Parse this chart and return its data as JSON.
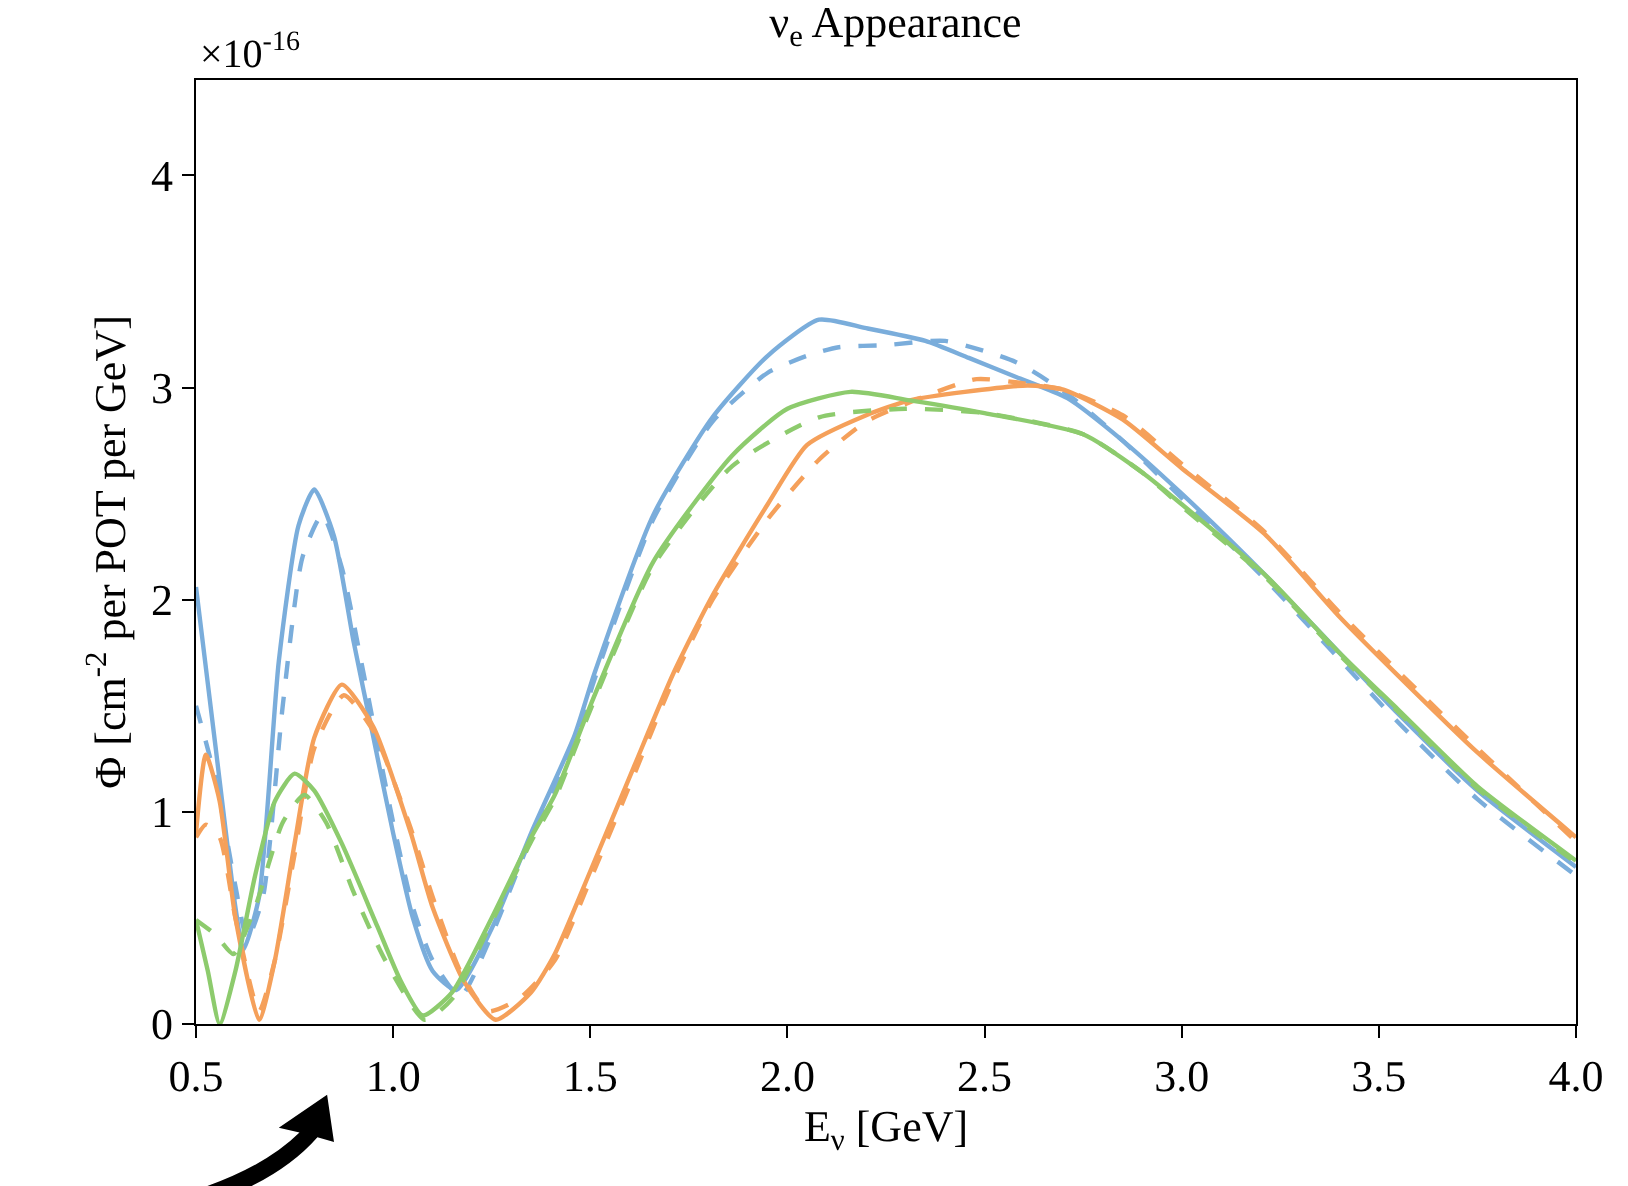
{
  "chart_data": {
    "type": "line",
    "title": "ν$_{e}$ Appearance",
    "xlabel": "E$_{ν}$ [GeV]",
    "ylabel": "Φ [cm$^{-2}$ per POT per GeV]",
    "annotations": [
      "×10$^{-16}$"
    ],
    "xlim": [
      0.5,
      4.0
    ],
    "ylim": [
      0,
      4.45
    ],
    "xticks": [
      {
        "value": 0.5,
        "label": "0.5"
      },
      {
        "value": 1.0,
        "label": "1.0"
      },
      {
        "value": 1.5,
        "label": "1.5"
      },
      {
        "value": 2.0,
        "label": "2.0"
      },
      {
        "value": 2.5,
        "label": "2.5"
      },
      {
        "value": 3.0,
        "label": "3.0"
      },
      {
        "value": 3.5,
        "label": "3.5"
      },
      {
        "value": 4.0,
        "label": "4.0"
      }
    ],
    "yticks": [
      0,
      1,
      2,
      3,
      4
    ],
    "marker": "none",
    "series": [
      {
        "color": "#7aaddb",
        "line_style": "solid",
        "x": [
          0.5,
          0.55,
          0.6,
          0.62,
          0.66,
          0.71,
          0.76,
          0.8,
          0.85,
          0.9,
          0.95,
          1.0,
          1.05,
          1.1,
          1.16,
          1.25,
          1.35,
          1.46,
          1.51,
          1.66,
          1.81,
          1.95,
          2.08,
          2.2,
          2.35,
          2.46,
          2.58,
          2.71,
          2.85,
          3.0,
          3.21,
          3.4,
          3.55,
          3.75,
          4.0
        ],
        "values": [
          2.06,
          1.3,
          0.55,
          0.35,
          0.6,
          1.71,
          2.35,
          2.52,
          2.3,
          1.8,
          1.35,
          0.9,
          0.5,
          0.25,
          0.16,
          0.45,
          0.9,
          1.36,
          1.65,
          2.4,
          2.86,
          3.15,
          3.32,
          3.28,
          3.22,
          3.14,
          3.05,
          2.95,
          2.75,
          2.5,
          2.12,
          1.75,
          1.46,
          1.1,
          0.74
        ]
      },
      {
        "color": "#7aaddb",
        "line_style": "dashed",
        "x": [
          0.5,
          0.55,
          0.6,
          0.63,
          0.67,
          0.72,
          0.77,
          0.82,
          0.87,
          0.92,
          1.0,
          1.05,
          1.1,
          1.17,
          1.25,
          1.35,
          1.46,
          1.51,
          1.66,
          1.81,
          1.95,
          2.05,
          2.13,
          2.25,
          2.4,
          2.58,
          2.71,
          2.85,
          3.0,
          3.21,
          3.4,
          3.55,
          3.75,
          4.0
        ],
        "values": [
          1.5,
          1.15,
          0.65,
          0.4,
          0.6,
          1.5,
          2.2,
          2.4,
          2.15,
          1.7,
          0.95,
          0.55,
          0.3,
          0.13,
          0.42,
          0.88,
          1.33,
          1.62,
          2.38,
          2.84,
          3.07,
          3.15,
          3.19,
          3.2,
          3.22,
          3.12,
          2.97,
          2.75,
          2.48,
          2.1,
          1.72,
          1.42,
          1.06,
          0.7
        ]
      },
      {
        "color": "#f5a05a",
        "line_style": "solid",
        "x": [
          0.5,
          0.525,
          0.56,
          0.6,
          0.66,
          0.7,
          0.75,
          0.8,
          0.87,
          0.95,
          1.045,
          1.1,
          1.18,
          1.26,
          1.35,
          1.41,
          1.5,
          1.61,
          1.71,
          1.81,
          1.95,
          2.05,
          2.2,
          2.31,
          2.45,
          2.61,
          2.7,
          2.85,
          3.0,
          3.21,
          3.4,
          3.55,
          3.75,
          4.0
        ],
        "values": [
          0.9,
          1.27,
          1.05,
          0.5,
          0.02,
          0.3,
          0.85,
          1.35,
          1.6,
          1.4,
          0.9,
          0.55,
          0.2,
          0.02,
          0.15,
          0.33,
          0.72,
          1.21,
          1.65,
          2.02,
          2.45,
          2.73,
          2.87,
          2.94,
          2.98,
          3.01,
          2.99,
          2.85,
          2.62,
          2.31,
          1.92,
          1.64,
          1.28,
          0.88
        ]
      },
      {
        "color": "#f5a05a",
        "line_style": "dashed",
        "x": [
          0.5,
          0.525,
          0.56,
          0.6,
          0.66,
          0.7,
          0.75,
          0.8,
          0.875,
          0.95,
          1.045,
          1.1,
          1.17,
          1.24,
          1.32,
          1.41,
          1.5,
          1.61,
          1.71,
          1.81,
          1.95,
          2.08,
          2.2,
          2.35,
          2.48,
          2.6,
          2.7,
          2.85,
          3.0,
          3.21,
          3.4,
          3.55,
          3.75,
          4.0
        ],
        "values": [
          0.88,
          0.94,
          0.88,
          0.5,
          0.06,
          0.3,
          0.8,
          1.3,
          1.55,
          1.38,
          0.92,
          0.6,
          0.25,
          0.06,
          0.12,
          0.3,
          0.68,
          1.17,
          1.62,
          2.0,
          2.38,
          2.66,
          2.84,
          2.96,
          3.04,
          3.02,
          2.99,
          2.87,
          2.64,
          2.32,
          1.94,
          1.66,
          1.3,
          0.86
        ]
      },
      {
        "color": "#8dcb6d",
        "line_style": "solid",
        "x": [
          0.5,
          0.53,
          0.56,
          0.6,
          0.65,
          0.7,
          0.75,
          0.8,
          0.87,
          0.96,
          1.02,
          1.075,
          1.15,
          1.25,
          1.35,
          1.41,
          1.5,
          1.66,
          1.86,
          2.0,
          2.16,
          2.31,
          2.5,
          2.75,
          2.9,
          3.0,
          3.21,
          3.4,
          3.55,
          3.75,
          4.0
        ],
        "values": [
          0.49,
          0.25,
          0.0,
          0.25,
          0.7,
          1.05,
          1.18,
          1.1,
          0.85,
          0.46,
          0.2,
          0.04,
          0.15,
          0.5,
          0.88,
          1.08,
          1.5,
          2.18,
          2.68,
          2.9,
          2.98,
          2.94,
          2.88,
          2.78,
          2.6,
          2.45,
          2.12,
          1.75,
          1.48,
          1.12,
          0.77
        ]
      },
      {
        "color": "#8dcb6d",
        "line_style": "dashed",
        "x": [
          0.5,
          0.55,
          0.595,
          0.65,
          0.72,
          0.775,
          0.83,
          0.9,
          0.98,
          1.08,
          1.15,
          1.25,
          1.35,
          1.41,
          1.5,
          1.66,
          1.86,
          2.08,
          2.3,
          2.5,
          2.75,
          2.9,
          3.0,
          3.21,
          3.4,
          3.55,
          3.75,
          4.0
        ],
        "values": [
          0.49,
          0.42,
          0.33,
          0.55,
          0.95,
          1.08,
          0.95,
          0.62,
          0.3,
          0.02,
          0.12,
          0.48,
          0.86,
          1.06,
          1.48,
          2.16,
          2.63,
          2.86,
          2.9,
          2.88,
          2.78,
          2.6,
          2.44,
          2.11,
          1.74,
          1.47,
          1.11,
          0.76
        ]
      }
    ]
  }
}
